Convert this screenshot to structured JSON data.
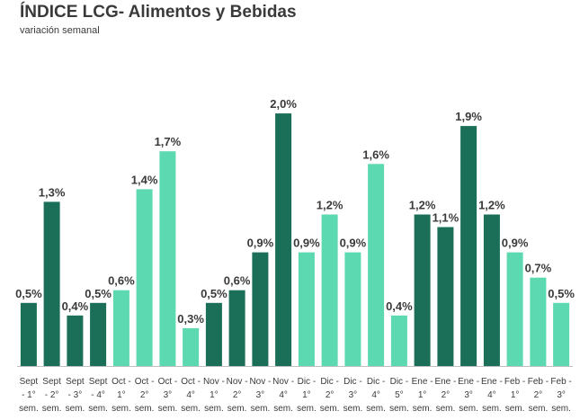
{
  "chart_data": {
    "type": "bar",
    "title": "ÍNDICE LCG- Alimentos y Bebidas",
    "subtitle": "variación semanal",
    "ylim": [
      0,
      2.2
    ],
    "grid": false,
    "legend": "none",
    "colors": {
      "dark": "#1b6e58",
      "light": "#5dd9b2",
      "axis": "#bfbfbf"
    },
    "categories": [
      [
        "Sept",
        "- 1°",
        "sem."
      ],
      [
        "Sept",
        "- 2°",
        "sem."
      ],
      [
        "Sept",
        "- 3°",
        "sem."
      ],
      [
        "Sept",
        "- 4°",
        "sem."
      ],
      [
        "Oct -",
        "1°",
        "sem."
      ],
      [
        "Oct -",
        "2°",
        "sem."
      ],
      [
        "Oct -",
        "3°",
        "sem."
      ],
      [
        "Oct -",
        "4°",
        "sem."
      ],
      [
        "Nov -",
        "1°",
        "sem."
      ],
      [
        "Nov -",
        "2°",
        "sem."
      ],
      [
        "Nov -",
        "3°",
        "sem."
      ],
      [
        "Nov -",
        "4°",
        "sem."
      ],
      [
        "Dic -",
        "1°",
        "sem."
      ],
      [
        "Dic -",
        "2°",
        "sem."
      ],
      [
        "Dic -",
        "3°",
        "sem."
      ],
      [
        "Dic -",
        "4°",
        "sem."
      ],
      [
        "Dic -",
        "5°",
        "sem."
      ],
      [
        "Ene -",
        "1°",
        "sem."
      ],
      [
        "Ene -",
        "2°",
        "sem."
      ],
      [
        "Ene -",
        "3°",
        "sem."
      ],
      [
        "Ene -",
        "4°",
        "sem."
      ],
      [
        "Feb -",
        "1°",
        "sem."
      ],
      [
        "Feb -",
        "2°",
        "sem."
      ],
      [
        "Feb -",
        "3°",
        "sem."
      ]
    ],
    "values": [
      0.5,
      1.3,
      0.4,
      0.5,
      0.6,
      1.4,
      1.7,
      0.3,
      0.5,
      0.6,
      0.9,
      2.0,
      0.9,
      1.2,
      0.9,
      1.6,
      0.4,
      1.2,
      1.1,
      1.9,
      1.2,
      0.9,
      0.7,
      0.5
    ],
    "labels": [
      "0,5%",
      "1,3%",
      "0,4%",
      "0,5%",
      "0,6%",
      "1,4%",
      "1,7%",
      "0,3%",
      "0,5%",
      "0,6%",
      "0,9%",
      "2,0%",
      "0,9%",
      "1,2%",
      "0,9%",
      "1,6%",
      "0,4%",
      "1,2%",
      "1,1%",
      "1,9%",
      "1,2%",
      "0,9%",
      "0,7%",
      "0,5%"
    ],
    "shades": [
      "dark",
      "dark",
      "dark",
      "dark",
      "light",
      "light",
      "light",
      "light",
      "dark",
      "dark",
      "dark",
      "dark",
      "light",
      "light",
      "light",
      "light",
      "light",
      "dark",
      "dark",
      "dark",
      "dark",
      "light",
      "light",
      "light"
    ]
  }
}
